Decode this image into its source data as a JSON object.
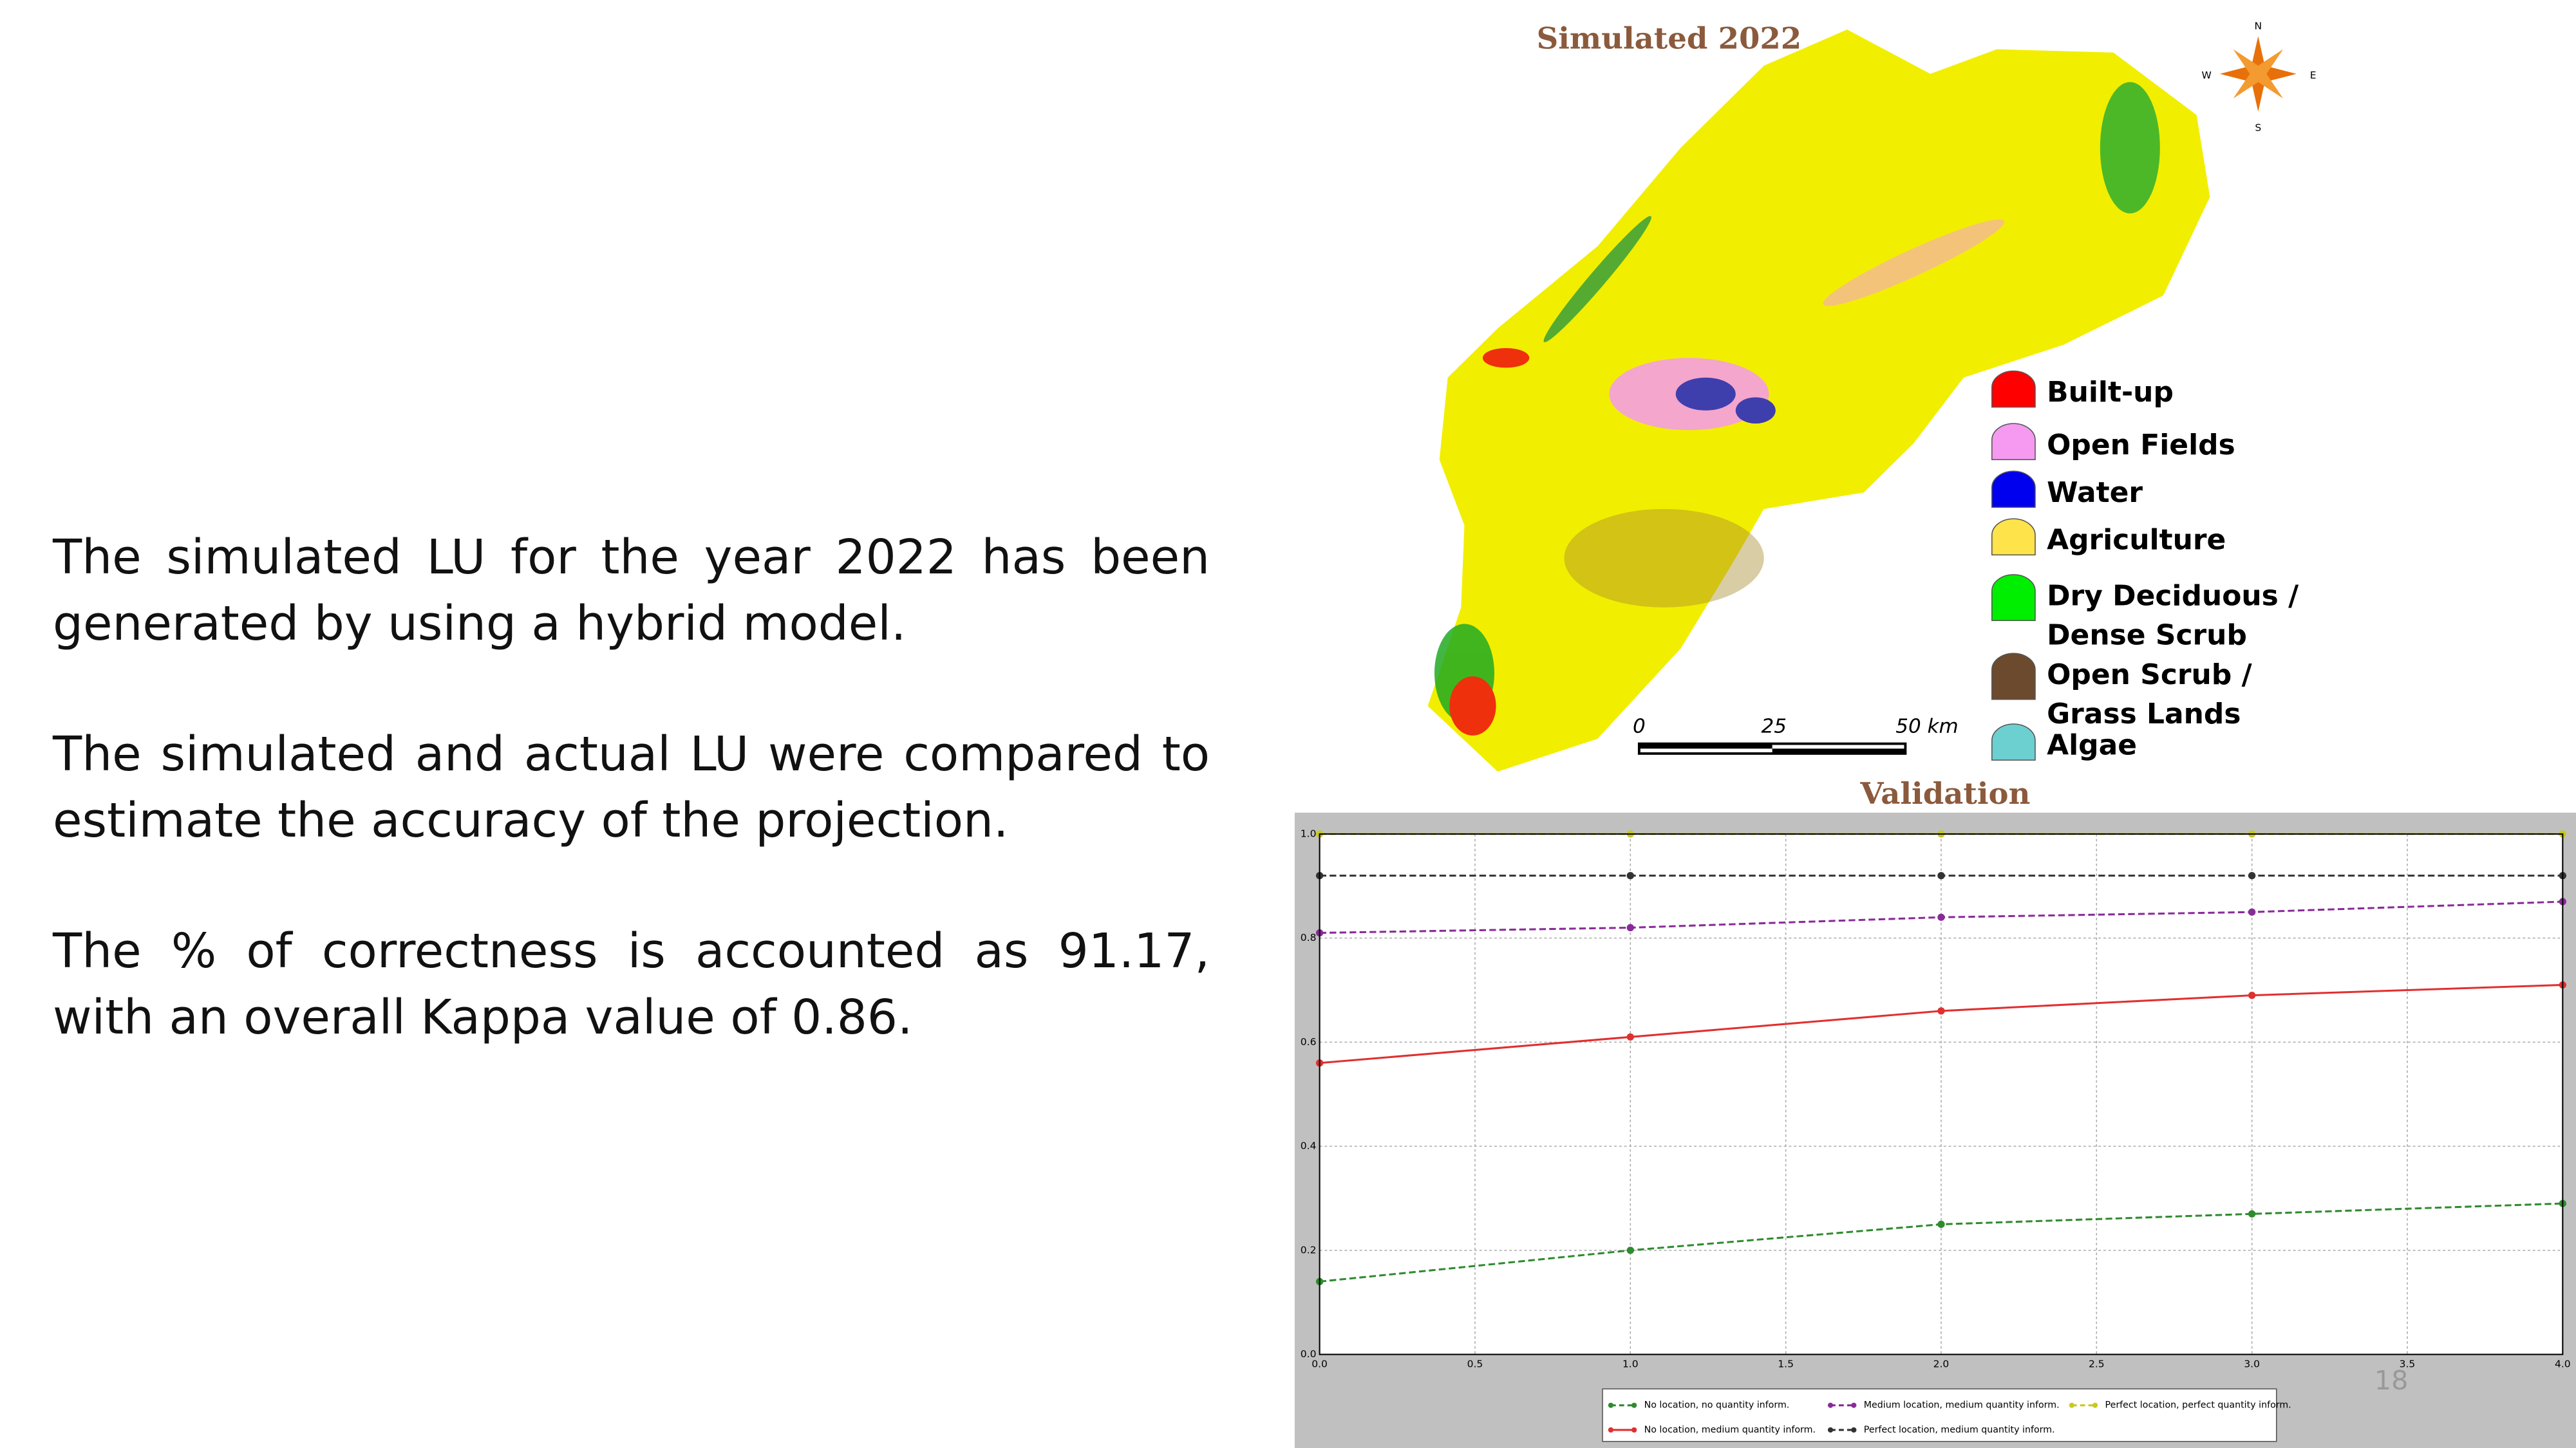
{
  "text": {
    "paragraphs": [
      "The simulated LU for the year 2022 has been generated by using a hybrid model.",
      "The simulated and actual LU were compared to estimate the accuracy of the projection.",
      "The % of correctness is accounted as 91.17, with an overall Kappa value of 0.86."
    ]
  },
  "map": {
    "title": "Simulated 2022",
    "compass": [
      "N",
      "E",
      "S",
      "W"
    ],
    "scale_labels": [
      "0",
      "25",
      "50 km"
    ],
    "legend": [
      {
        "label": "Built-up",
        "color": "#ff0000"
      },
      {
        "label": "Open Fields",
        "color": "#f59af0"
      },
      {
        "label": "Water",
        "color": "#0000ee"
      },
      {
        "label": "Agriculture",
        "color": "#ffe34a"
      },
      {
        "label": "Dry Deciduous /",
        "label2": "Dense Scrub",
        "color": "#00ee00"
      },
      {
        "label": "Open Scrub /",
        "label2": "Grass Lands",
        "color": "#6b4a2e"
      },
      {
        "label": "Algae",
        "color": "#6ccfd0"
      }
    ]
  },
  "chart_data": {
    "type": "line",
    "title": "Validation",
    "x": [
      0,
      1,
      2,
      3,
      4
    ],
    "xlim": [
      0,
      4
    ],
    "xticks": [
      {
        "value": 0,
        "label": "0.0"
      },
      0.5,
      {
        "value": 1,
        "label": "1.0"
      },
      1.5,
      {
        "value": 2,
        "label": "2.0"
      },
      2.5,
      {
        "value": 3,
        "label": "3.0"
      },
      3.5,
      {
        "value": 4,
        "label": "4.0"
      }
    ],
    "ylim": [
      0,
      1
    ],
    "yticks": [
      {
        "value": 0,
        "label": "0.0"
      },
      0.2,
      0.4,
      0.6,
      0.8,
      {
        "value": 1,
        "label": "1.0"
      }
    ],
    "grid": true,
    "series": [
      {
        "name": "No location, no quantity inform.",
        "color": "#2e8b2e",
        "dash": true,
        "values": [
          0.14,
          0.2,
          0.25,
          0.27,
          0.29
        ]
      },
      {
        "name": "No location, medium quantity inform.",
        "color": "#e03030",
        "dash": false,
        "values": [
          0.56,
          0.61,
          0.66,
          0.69,
          0.71
        ]
      },
      {
        "name": "Medium location, medium quantity inform.",
        "color": "#8a2a9a",
        "dash": true,
        "values": [
          0.81,
          0.82,
          0.84,
          0.85,
          0.87
        ]
      },
      {
        "name": "Perfect location, medium quantity inform.",
        "color": "#333333",
        "dash": true,
        "values": [
          0.92,
          0.92,
          0.92,
          0.92,
          0.92
        ]
      },
      {
        "name": "Perfect location, perfect quantity inform.",
        "color": "#c8c820",
        "dash": true,
        "values": [
          1,
          1,
          1,
          1,
          1
        ]
      }
    ]
  },
  "page_number": "18"
}
